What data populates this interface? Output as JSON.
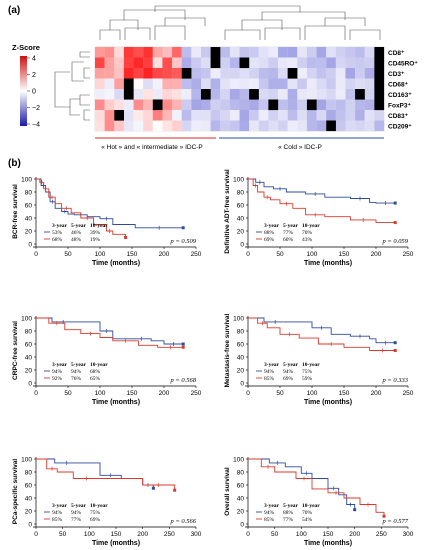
{
  "panel_a": {
    "label": "(a)",
    "legend": {
      "title": "Z-Score",
      "ticks": [
        "4",
        "2",
        "0",
        "−2",
        "−4"
      ]
    },
    "markers": [
      "CD8⁺",
      "CD45RO⁺",
      "CD3⁺",
      "CD68⁺",
      "CD163⁺",
      "FoxP3⁺",
      "CD83⁺",
      "CD209⁺"
    ],
    "groups": [
      "« Hot » and « intermediate » IDC-P",
      "« Cold » IDC-P"
    ],
    "colors": {
      "hot": "#d62728",
      "cold": "#1f4fa8",
      "missing": "#000000"
    }
  },
  "panel_b": {
    "label": "(b)",
    "xlabel": "Time (months)",
    "table_headers": [
      "3-year",
      "5-year",
      "10-year"
    ],
    "colors": {
      "series1": "#2f4b9c",
      "series2": "#d93a2b"
    }
  },
  "chart_data": [
    {
      "type": "line",
      "ylabel": "BCR-free survival",
      "xlabel": "Time (months)",
      "xlim": [
        0,
        250
      ],
      "ylim": [
        0,
        100
      ],
      "xticks": [
        0,
        50,
        100,
        150,
        200,
        250
      ],
      "yticks": [
        0,
        20,
        40,
        60,
        80,
        100
      ],
      "pvalue": "p = 0.509",
      "series": [
        {
          "rates": [
            "53%",
            "46%",
            "39%"
          ],
          "x": [
            0,
            8,
            15,
            22,
            30,
            40,
            50,
            60,
            80,
            100,
            120,
            155,
            230
          ],
          "y": [
            100,
            90,
            80,
            65,
            55,
            50,
            46,
            45,
            42,
            39,
            30,
            25,
            25
          ]
        },
        {
          "rates": [
            "68%",
            "48%",
            "19%"
          ],
          "x": [
            0,
            6,
            12,
            20,
            30,
            40,
            55,
            70,
            90,
            110,
            120,
            140
          ],
          "y": [
            100,
            95,
            85,
            72,
            62,
            55,
            48,
            40,
            30,
            20,
            15,
            10
          ]
        }
      ]
    },
    {
      "type": "line",
      "ylabel": "Definitive ADT-free survival",
      "xlabel": "Time (months)",
      "xlim": [
        0,
        250
      ],
      "ylim": [
        0,
        100
      ],
      "xticks": [
        0,
        50,
        100,
        150,
        200,
        250
      ],
      "yticks": [
        0,
        20,
        40,
        60,
        80,
        100
      ],
      "pvalue": "p = 0.059",
      "series": [
        {
          "rates": [
            "88%",
            "77%",
            "70%"
          ],
          "x": [
            0,
            12,
            25,
            40,
            60,
            90,
            120,
            160,
            190,
            200,
            230
          ],
          "y": [
            100,
            95,
            88,
            85,
            80,
            77,
            72,
            70,
            64,
            63,
            63
          ]
        },
        {
          "rates": [
            "69%",
            "60%",
            "43%"
          ],
          "x": [
            0,
            8,
            15,
            25,
            35,
            50,
            70,
            90,
            120,
            160,
            200,
            230
          ],
          "y": [
            100,
            90,
            80,
            72,
            68,
            62,
            55,
            45,
            42,
            37,
            33,
            33
          ]
        }
      ]
    },
    {
      "type": "line",
      "ylabel": "CRPC-free survival",
      "xlabel": "Time (months)",
      "xlim": [
        0,
        250
      ],
      "ylim": [
        0,
        100
      ],
      "xticks": [
        0,
        50,
        100,
        150,
        200,
        250
      ],
      "yticks": [
        0,
        20,
        40,
        60,
        80,
        100
      ],
      "pvalue": "p = 0.568",
      "series": [
        {
          "rates": [
            "94%",
            "94%",
            "68%"
          ],
          "x": [
            0,
            25,
            60,
            100,
            120,
            150,
            180,
            200,
            230
          ],
          "y": [
            100,
            94,
            94,
            80,
            68,
            68,
            65,
            60,
            60
          ]
        },
        {
          "rates": [
            "92%",
            "76%",
            "65%"
          ],
          "x": [
            0,
            20,
            45,
            70,
            100,
            120,
            160,
            190,
            230
          ],
          "y": [
            100,
            92,
            82,
            76,
            70,
            65,
            58,
            55,
            55
          ]
        }
      ]
    },
    {
      "type": "line",
      "ylabel": "Metastasis-free survival",
      "xlabel": "Time (months)",
      "xlim": [
        0,
        250
      ],
      "ylim": [
        0,
        100
      ],
      "xticks": [
        0,
        50,
        100,
        150,
        200,
        250
      ],
      "yticks": [
        0,
        20,
        40,
        60,
        80,
        100
      ],
      "pvalue": "p = 0.333",
      "series": [
        {
          "rates": [
            "94%",
            "94%",
            "75%"
          ],
          "x": [
            0,
            25,
            60,
            100,
            130,
            160,
            190,
            200,
            230
          ],
          "y": [
            100,
            94,
            94,
            85,
            75,
            72,
            68,
            62,
            62
          ]
        },
        {
          "rates": [
            "85%",
            "69%",
            "59%"
          ],
          "x": [
            0,
            15,
            30,
            50,
            80,
            110,
            150,
            190,
            230
          ],
          "y": [
            100,
            92,
            85,
            75,
            69,
            60,
            55,
            50,
            50
          ]
        }
      ]
    },
    {
      "type": "line",
      "ylabel": "PCa-specific survival",
      "xlabel": "Time (months)",
      "xlim": [
        0,
        300
      ],
      "ylim": [
        0,
        100
      ],
      "xticks": [
        0,
        50,
        100,
        150,
        200,
        250,
        300
      ],
      "yticks": [
        0,
        20,
        40,
        60,
        80,
        100
      ],
      "pvalue": "p = 0.566",
      "series": [
        {
          "rates": [
            "94%",
            "94%",
            "75%"
          ],
          "x": [
            0,
            35,
            80,
            120,
            160,
            200,
            220
          ],
          "y": [
            100,
            94,
            94,
            75,
            70,
            60,
            55
          ]
        },
        {
          "rates": [
            "85%",
            "77%",
            "69%"
          ],
          "x": [
            0,
            20,
            40,
            70,
            120,
            200,
            260
          ],
          "y": [
            100,
            85,
            80,
            70,
            70,
            60,
            52
          ]
        }
      ]
    },
    {
      "type": "line",
      "ylabel": "Overall survival",
      "xlabel": "Time (months)",
      "xlim": [
        0,
        300
      ],
      "ylim": [
        0,
        100
      ],
      "xticks": [
        0,
        50,
        100,
        150,
        200,
        250,
        300
      ],
      "yticks": [
        0,
        20,
        40,
        60,
        80,
        100
      ],
      "pvalue": "p = 0.577",
      "series": [
        {
          "rates": [
            "94%",
            "88%",
            "70%"
          ],
          "x": [
            0,
            40,
            70,
            100,
            120,
            150,
            170,
            185,
            200
          ],
          "y": [
            100,
            94,
            88,
            78,
            70,
            55,
            45,
            30,
            22
          ]
        },
        {
          "rates": [
            "85%",
            "77%",
            "54%"
          ],
          "x": [
            0,
            25,
            50,
            90,
            120,
            150,
            180,
            210,
            240,
            255
          ],
          "y": [
            100,
            88,
            80,
            70,
            54,
            48,
            40,
            30,
            18,
            12
          ]
        }
      ]
    }
  ]
}
